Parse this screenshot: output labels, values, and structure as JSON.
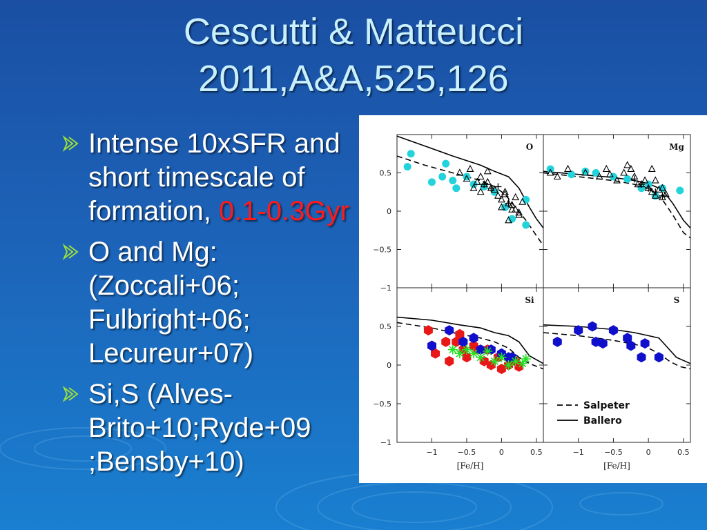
{
  "slide": {
    "title_line1": "Cescutti & Matteucci",
    "title_line2": "2011,A&A,525,126",
    "bullets": [
      {
        "text": "Intense 10xSFR and short timescale of formation, ",
        "highlight": "0.1-0.3Gyr"
      },
      {
        "text": "O and Mg: (Zoccali+06; Fulbright+06; Lecureur+07)"
      },
      {
        "text": " Si,S (Alves-Brito+10;Ryde+09 ;Bensby+10)"
      }
    ],
    "colors": {
      "title": "#c8f0ff",
      "text": "#ffffff",
      "highlight": "#ff1a1a",
      "bullet_icon": "#9ddf3a"
    }
  },
  "chart_data": {
    "type": "scatter",
    "xlabel": "[Fe/H]",
    "xlim": [
      -1.5,
      0.6
    ],
    "ylim": [
      -1,
      1
    ],
    "xticks": [
      -1,
      -0.5,
      0,
      0.5
    ],
    "xtick_labels": [
      "−1",
      "−0.5",
      "0",
      "0.5"
    ],
    "yticks": [
      -1,
      -0.5,
      0,
      0.5
    ],
    "ytick_labels": [
      "−1",
      "−0.5",
      "0",
      "0.5"
    ],
    "legend": {
      "placement": "lower-left of S panel",
      "entries": [
        "Salpeter",
        "Ballero"
      ]
    },
    "model_colors": {
      "curves": "#000000",
      "cyan": "#22d3dc",
      "red": "#e81818",
      "blue": "#1010cc",
      "green": "#22e022"
    },
    "panels": [
      {
        "element": "O",
        "models": {
          "Salpeter": {
            "x": [
              -1.5,
              -1.1,
              -0.7,
              -0.3,
              -0.1,
              0.05,
              0.2,
              0.35,
              0.5,
              0.6
            ],
            "y": [
              0.72,
              0.6,
              0.5,
              0.4,
              0.32,
              0.22,
              0.05,
              -0.12,
              -0.32,
              -0.45
            ]
          },
          "Ballero": {
            "x": [
              -1.5,
              -1.1,
              -0.7,
              -0.3,
              -0.1,
              0.1,
              0.25,
              0.4,
              0.5,
              0.6
            ],
            "y": [
              0.98,
              0.85,
              0.72,
              0.6,
              0.52,
              0.45,
              0.3,
              0.05,
              -0.1,
              -0.22
            ]
          }
        },
        "points": [
          {
            "marker": "circle",
            "color": "cyan",
            "x": [
              -1.3,
              -1.35,
              -1.0,
              -0.8,
              -0.7,
              -0.65,
              -0.5,
              -0.4,
              -0.25,
              -0.1,
              0.05,
              0.15,
              0.35,
              0.35,
              -0.85
            ],
            "y": [
              0.75,
              0.58,
              0.38,
              0.62,
              0.4,
              0.3,
              0.45,
              0.35,
              0.32,
              0.25,
              0.05,
              -0.1,
              0.15,
              -0.18,
              0.45
            ]
          },
          {
            "marker": "triangle",
            "color": "black",
            "x": [
              -0.6,
              -0.5,
              -0.45,
              -0.35,
              -0.3,
              -0.25,
              -0.2,
              -0.15,
              -0.1,
              -0.05,
              0.0,
              0.05,
              0.1,
              0.15,
              0.2,
              0.25,
              0.3,
              -0.4,
              -0.3,
              0.0,
              0.1,
              0.2,
              -0.2,
              0.05,
              0.15,
              0.25
            ],
            "y": [
              0.5,
              0.42,
              0.55,
              0.38,
              0.45,
              0.35,
              0.52,
              0.3,
              0.28,
              0.2,
              0.15,
              0.25,
              0.1,
              0.08,
              0.02,
              -0.05,
              0.12,
              0.3,
              0.25,
              0.05,
              -0.12,
              0.18,
              0.38,
              0.22,
              0.02,
              -0.02
            ]
          },
          {
            "marker": "cross",
            "color": "black",
            "x": [
              -0.25,
              -0.15,
              -0.05,
              0.1
            ],
            "y": [
              0.35,
              0.3,
              0.32,
              0.1
            ]
          }
        ]
      },
      {
        "element": "Mg",
        "models": {
          "Salpeter": {
            "x": [
              -1.5,
              -1.0,
              -0.5,
              -0.2,
              0.0,
              0.2,
              0.35,
              0.5,
              0.6
            ],
            "y": [
              0.5,
              0.45,
              0.4,
              0.35,
              0.3,
              0.15,
              -0.05,
              -0.28,
              -0.35
            ]
          },
          "Ballero": {
            "x": [
              -1.5,
              -1.0,
              -0.5,
              -0.2,
              0.0,
              0.2,
              0.35,
              0.5,
              0.6
            ],
            "y": [
              0.52,
              0.48,
              0.44,
              0.4,
              0.36,
              0.28,
              0.1,
              -0.12,
              -0.22
            ]
          }
        },
        "points": [
          {
            "marker": "circle",
            "color": "cyan",
            "x": [
              -1.4,
              -1.1,
              -0.9,
              -0.75,
              -0.5,
              -0.3,
              -0.1,
              0.0,
              0.1,
              0.2,
              0.45
            ],
            "y": [
              0.55,
              0.48,
              0.52,
              0.5,
              0.45,
              0.42,
              0.3,
              0.35,
              0.2,
              0.3,
              0.27
            ]
          },
          {
            "marker": "triangle",
            "color": "black",
            "x": [
              -1.4,
              -1.3,
              -1.15,
              -0.9,
              -0.7,
              -0.55,
              -0.45,
              -0.35,
              -0.25,
              -0.2,
              -0.1,
              -0.05,
              0.0,
              0.05,
              0.1,
              0.15,
              0.2,
              0.25,
              -0.6,
              -0.3,
              0.05,
              -0.15,
              0.1,
              0.2
            ],
            "y": [
              0.5,
              0.45,
              0.55,
              0.5,
              0.45,
              0.48,
              0.4,
              0.5,
              0.55,
              0.45,
              0.35,
              0.4,
              0.3,
              0.25,
              0.2,
              0.28,
              0.3,
              0.22,
              0.55,
              0.6,
              0.55,
              0.35,
              0.4,
              0.18
            ]
          },
          {
            "marker": "cross",
            "color": "black",
            "x": [
              -0.2,
              -0.1,
              0.0,
              0.1,
              0.2
            ],
            "y": [
              0.42,
              0.35,
              0.3,
              0.25,
              0.2
            ]
          }
        ]
      },
      {
        "element": "Si",
        "models": {
          "Salpeter": {
            "x": [
              -1.5,
              -1.0,
              -0.6,
              -0.3,
              -0.1,
              0.1,
              0.25,
              0.4,
              0.6
            ],
            "y": [
              0.55,
              0.48,
              0.4,
              0.35,
              0.3,
              0.22,
              0.1,
              0.02,
              -0.05
            ]
          },
          "Ballero": {
            "x": [
              -1.5,
              -1.0,
              -0.6,
              -0.3,
              -0.1,
              0.1,
              0.25,
              0.4,
              0.6
            ],
            "y": [
              0.62,
              0.58,
              0.52,
              0.48,
              0.42,
              0.38,
              0.3,
              0.12,
              0.02
            ]
          }
        },
        "points": [
          {
            "marker": "hexagon",
            "color": "red",
            "x": [
              -1.05,
              -1.0,
              -0.8,
              -0.75,
              -0.65,
              -0.55,
              -0.5,
              -0.4,
              -0.35,
              -0.25,
              -0.15,
              -0.05,
              0.0,
              0.1,
              0.2,
              0.25,
              -0.95,
              -0.6,
              -0.2
            ],
            "y": [
              0.45,
              0.25,
              0.3,
              0.05,
              0.3,
              0.2,
              0.1,
              0.25,
              0.2,
              0.05,
              0.0,
              0.1,
              -0.05,
              0.0,
              0.05,
              -0.02,
              0.15,
              0.4,
              0.2
            ]
          },
          {
            "marker": "hexagon",
            "color": "blue",
            "x": [
              -1.0,
              -0.75,
              -0.55,
              -0.4,
              -0.3,
              -0.15,
              0.0,
              0.1,
              0.15
            ],
            "y": [
              0.25,
              0.45,
              0.3,
              0.35,
              0.2,
              0.2,
              0.15,
              0.1,
              0.1
            ]
          },
          {
            "marker": "asterisk",
            "color": "green",
            "x": [
              -0.7,
              -0.6,
              -0.5,
              -0.4,
              -0.3,
              -0.2,
              -0.1,
              0.0,
              0.1,
              0.2,
              0.35,
              0.3
            ],
            "y": [
              0.2,
              0.15,
              0.2,
              0.15,
              0.1,
              0.18,
              0.05,
              0.1,
              0.0,
              0.05,
              0.08,
              0.02
            ]
          }
        ]
      },
      {
        "element": "S",
        "models": {
          "Salpeter": {
            "x": [
              -1.5,
              -1.0,
              -0.5,
              -0.2,
              0.0,
              0.15,
              0.3,
              0.45,
              0.6
            ],
            "y": [
              0.42,
              0.38,
              0.32,
              0.27,
              0.22,
              0.15,
              0.05,
              -0.02,
              -0.05
            ]
          },
          "Ballero": {
            "x": [
              -1.5,
              -1.0,
              -0.5,
              -0.2,
              0.0,
              0.15,
              0.25,
              0.4,
              0.6
            ],
            "y": [
              0.52,
              0.5,
              0.46,
              0.42,
              0.38,
              0.35,
              0.25,
              0.1,
              0.02
            ]
          }
        },
        "points": [
          {
            "marker": "hexagon",
            "color": "blue",
            "x": [
              -1.3,
              -1.0,
              -0.8,
              -0.75,
              -0.65,
              -0.5,
              -0.3,
              -0.25,
              -0.1,
              -0.05,
              0.15
            ],
            "y": [
              0.3,
              0.45,
              0.5,
              0.3,
              0.28,
              0.45,
              0.35,
              0.25,
              0.1,
              0.28,
              0.1
            ]
          }
        ]
      }
    ]
  }
}
